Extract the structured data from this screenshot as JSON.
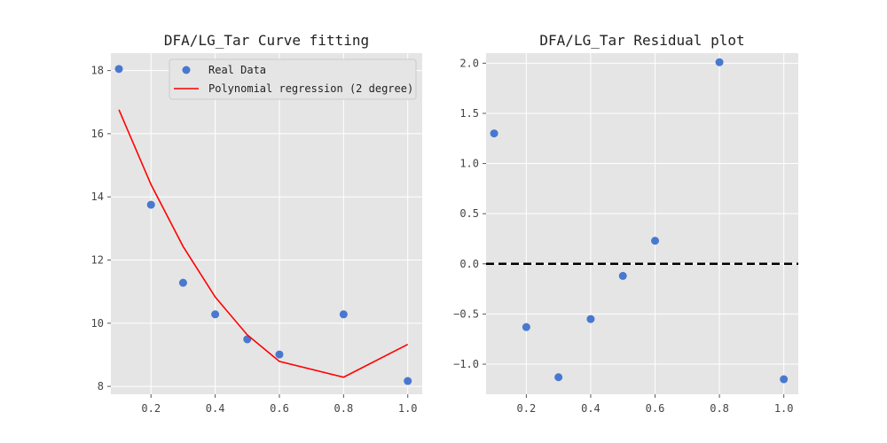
{
  "chart_data": [
    {
      "type": "scatter",
      "title": "DFA/LG_Tar Curve fitting",
      "xlabel": "",
      "ylabel": "",
      "xlim": [
        0.075,
        1.045
      ],
      "ylim": [
        7.75,
        18.55
      ],
      "xticks": [
        0.2,
        0.4,
        0.6,
        0.8,
        1.0
      ],
      "xtick_labels": [
        "0.2",
        "0.4",
        "0.6",
        "0.8",
        "1.0"
      ],
      "yticks": [
        8,
        10,
        12,
        14,
        16,
        18
      ],
      "ytick_labels": [
        "8",
        "10",
        "12",
        "14",
        "16",
        "18"
      ],
      "grid": true,
      "legend_position": "top-right",
      "series": [
        {
          "name": "Real Data",
          "kind": "scatter",
          "color": "#4878cf",
          "x": [
            0.1,
            0.2,
            0.3,
            0.4,
            0.5,
            0.6,
            0.8,
            1.0
          ],
          "y": [
            18.05,
            13.75,
            11.28,
            10.28,
            9.49,
            9.01,
            10.28,
            8.17
          ]
        },
        {
          "name": "Polynomial regression (2 degree)",
          "kind": "line",
          "color": "#ff0000",
          "x": [
            0.1,
            0.2,
            0.3,
            0.4,
            0.5,
            0.6,
            0.8,
            1.0
          ],
          "y": [
            16.76,
            14.39,
            12.43,
            10.83,
            9.63,
            8.79,
            8.29,
            9.33
          ]
        }
      ]
    },
    {
      "type": "scatter",
      "title": "DFA/LG_Tar Residual plot",
      "xlabel": "",
      "ylabel": "",
      "xlim": [
        0.075,
        1.045
      ],
      "ylim": [
        -1.3,
        2.1
      ],
      "xticks": [
        0.2,
        0.4,
        0.6,
        0.8,
        1.0
      ],
      "xtick_labels": [
        "0.2",
        "0.4",
        "0.6",
        "0.8",
        "1.0"
      ],
      "yticks": [
        -1.0,
        -0.5,
        0.0,
        0.5,
        1.0,
        1.5,
        2.0
      ],
      "ytick_labels": [
        "−1.0",
        "−0.5",
        "0.0",
        "0.5",
        "1.0",
        "1.5",
        "2.0"
      ],
      "grid": true,
      "reference_line": {
        "y": 0,
        "style": "dashed",
        "color": "#000000"
      },
      "series": [
        {
          "kind": "scatter",
          "color": "#4878cf",
          "x": [
            0.1,
            0.2,
            0.3,
            0.4,
            0.5,
            0.6,
            0.8,
            1.0
          ],
          "y": [
            1.3,
            -0.63,
            -1.13,
            -0.55,
            -0.12,
            0.23,
            2.01,
            -1.15
          ]
        }
      ]
    }
  ]
}
